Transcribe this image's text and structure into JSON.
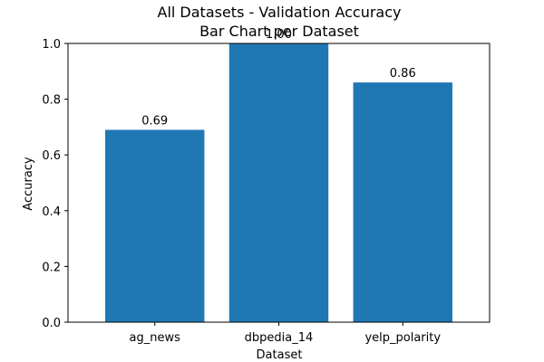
{
  "chart_data": {
    "type": "bar",
    "title": "All Datasets - Validation Accuracy",
    "subtitle": "Bar Chart per Dataset",
    "xlabel": "Dataset",
    "ylabel": "Accuracy",
    "categories": [
      "ag_news",
      "dbpedia_14",
      "yelp_polarity"
    ],
    "values": [
      0.69,
      1.0,
      0.86
    ],
    "value_labels": [
      "0.69",
      "1.00",
      "0.86"
    ],
    "ylim": [
      0,
      1.0
    ],
    "yticks": [
      0.0,
      0.2,
      0.4,
      0.6,
      0.8,
      1.0
    ],
    "ytick_labels": [
      "0.0",
      "0.2",
      "0.4",
      "0.6",
      "0.8",
      "1.0"
    ],
    "grid": false,
    "legend": "none",
    "bar_color": "#1f77b4"
  }
}
